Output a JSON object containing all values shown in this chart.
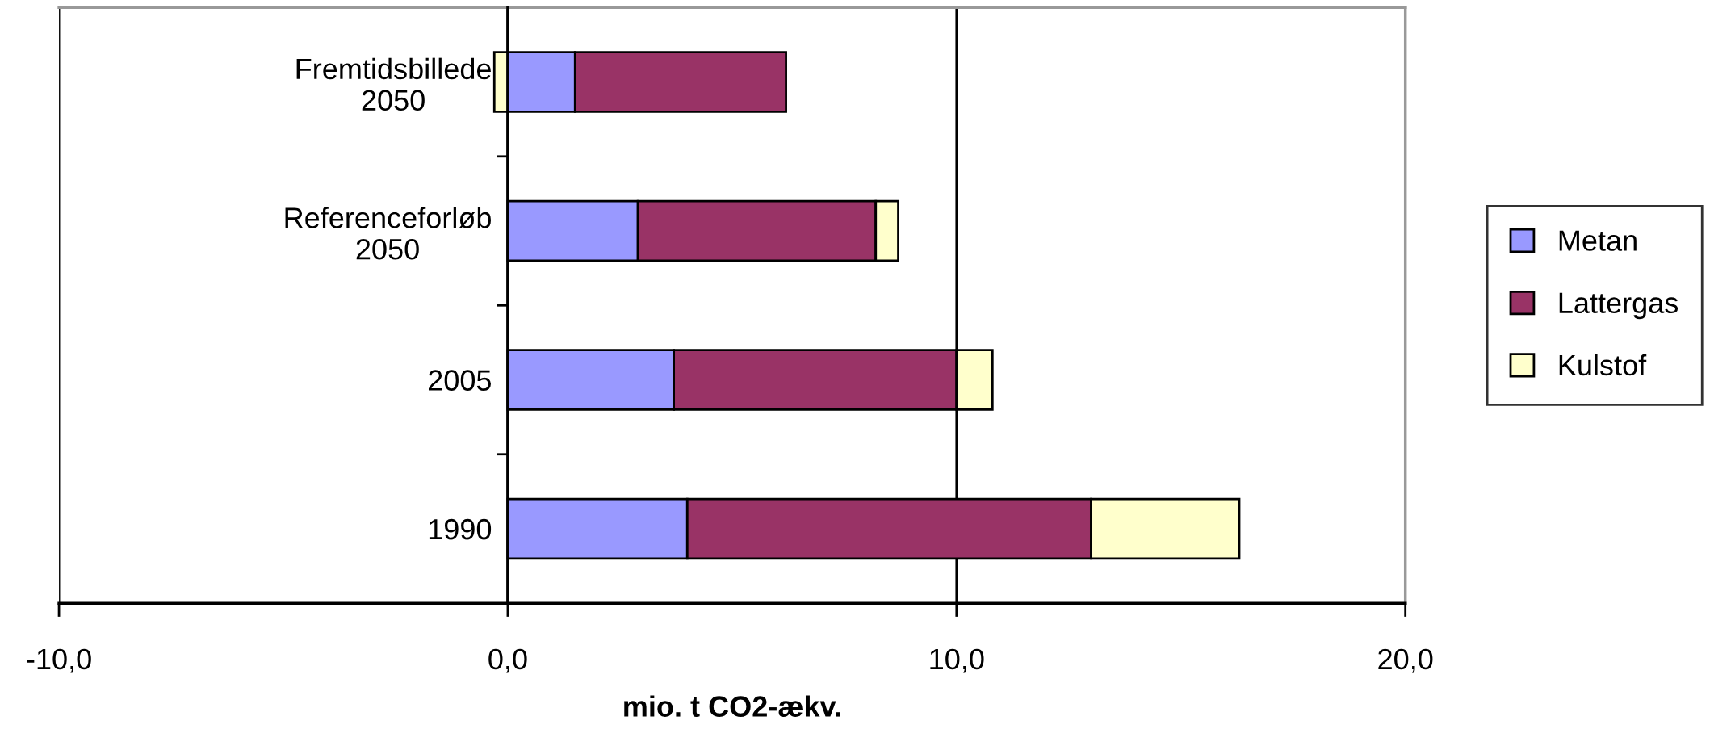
{
  "chart_data": {
    "type": "bar",
    "orientation": "horizontal",
    "stacked": true,
    "categories": [
      "Fremtidsbillede\n2050",
      "Referenceforløb\n2050",
      "2005",
      "1990"
    ],
    "series": [
      {
        "name": "Metan",
        "color": "#9999ff",
        "values": [
          1.5,
          2.9,
          3.7,
          4.0
        ]
      },
      {
        "name": "Lattergas",
        "color": "#993366",
        "values": [
          4.7,
          5.3,
          6.3,
          9.0
        ]
      },
      {
        "name": "Kulstof",
        "color": "#ffffcc",
        "values": [
          -0.3,
          0.5,
          0.8,
          3.3
        ]
      }
    ],
    "xlim": [
      -10,
      20
    ],
    "xticks": [
      {
        "value": -10,
        "label": "-10,0"
      },
      {
        "value": 0,
        "label": "0,0"
      },
      {
        "value": 10,
        "label": "10,0"
      },
      {
        "value": 20,
        "label": "20,0"
      }
    ],
    "xlabel": "mio. t CO2-ækv.",
    "grid": "x",
    "legend": "right"
  }
}
